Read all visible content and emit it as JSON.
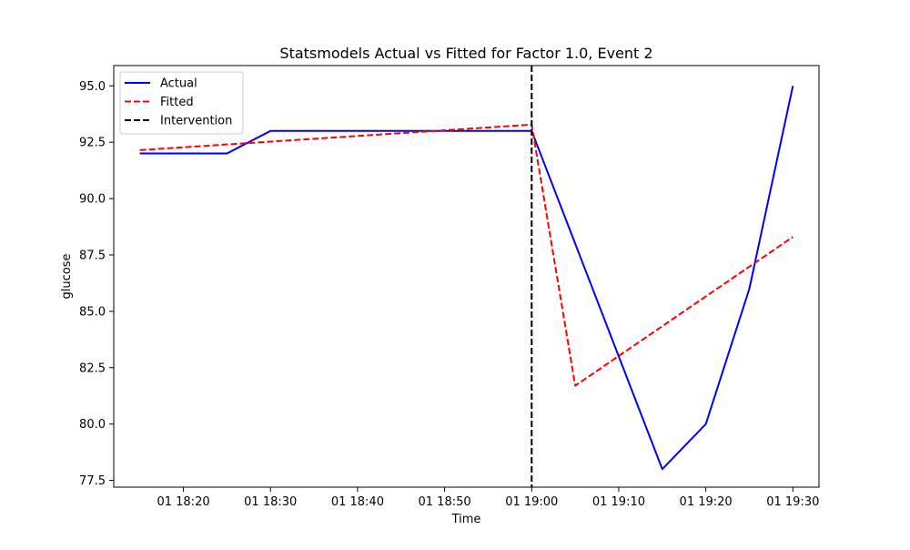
{
  "chart_data": {
    "type": "line",
    "title": "Statsmodels Actual vs Fitted for Factor 1.0, Event 2",
    "xlabel": "Time",
    "ylabel": "glucose",
    "x_time_range": [
      "01 18:12",
      "01 19:33"
    ],
    "ylim": [
      77.2,
      95.9
    ],
    "x_ticks": [
      "01 18:20",
      "01 18:30",
      "01 18:40",
      "01 18:50",
      "01 19:00",
      "01 19:10",
      "01 19:20",
      "01 19:30"
    ],
    "y_ticks": [
      "77.5",
      "80.0",
      "82.5",
      "85.0",
      "87.5",
      "90.0",
      "92.5",
      "95.0"
    ],
    "grid": false,
    "legend_position": "upper-left",
    "series": [
      {
        "name": "Actual",
        "color": "#0000ff",
        "style": "solid",
        "points": [
          {
            "t": "01 18:15",
            "y": 92.0
          },
          {
            "t": "01 18:25",
            "y": 92.0
          },
          {
            "t": "01 18:30",
            "y": 93.0
          },
          {
            "t": "01 19:00",
            "y": 93.0
          },
          {
            "t": "01 19:15",
            "y": 78.0
          },
          {
            "t": "01 19:20",
            "y": 80.0
          },
          {
            "t": "01 19:25",
            "y": 86.0
          },
          {
            "t": "01 19:30",
            "y": 95.0
          }
        ]
      },
      {
        "name": "Fitted",
        "color": "#ff0000",
        "style": "dashed",
        "points": [
          {
            "t": "01 18:15",
            "y": 92.15
          },
          {
            "t": "01 19:00",
            "y": 93.28
          },
          {
            "t": "01 19:05",
            "y": 81.7
          },
          {
            "t": "01 19:30",
            "y": 88.3
          }
        ]
      }
    ],
    "markers": [
      {
        "name": "Intervention",
        "t": "01 19:00",
        "color": "#000000",
        "style": "dashed"
      }
    ]
  }
}
